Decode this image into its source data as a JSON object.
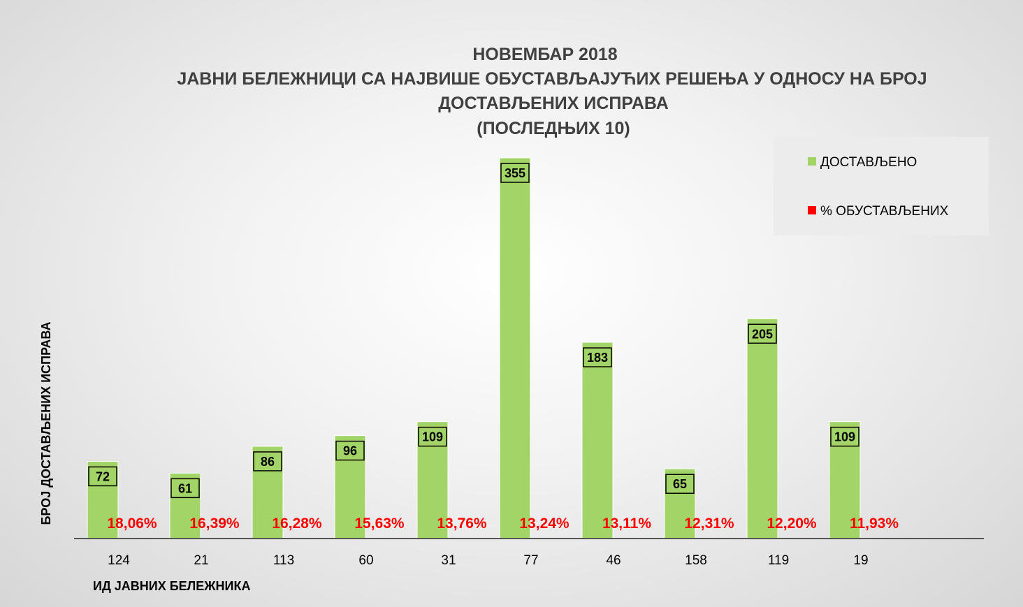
{
  "chart_data": {
    "type": "bar",
    "title_lines": [
      "НОВЕМБАР 2018",
      "ЈАВНИ БЕЛЕЖНИЦИ СА НАЈВИШЕ ОБУСТАВЉАЈУЋИХ РЕШЕЊА У ОДНОСУ НА БРОЈ",
      "ДОСТАВЉЕНИХ ИСПРАВА",
      "(ПОСЛЕДЊИХ 10)"
    ],
    "categories": [
      "124",
      "21",
      "113",
      "60",
      "31",
      "77",
      "46",
      "158",
      "119",
      "19"
    ],
    "series": [
      {
        "name": "ДОСТАВЉЕНО",
        "values": [
          72,
          61,
          86,
          96,
          109,
          355,
          183,
          65,
          205,
          109
        ],
        "color": "#a3d468"
      },
      {
        "name": "% ОБУСТАВЉЕНИХ",
        "labels": [
          "18,06%",
          "16,39%",
          "16,28%",
          "15,63%",
          "13,76%",
          "13,24%",
          "13,11%",
          "12,31%",
          "12,20%",
          "11,93%"
        ],
        "values": [
          18.06,
          16.39,
          16.28,
          15.63,
          13.76,
          13.24,
          13.11,
          12.31,
          12.2,
          11.93
        ],
        "color": "#ff0000"
      }
    ],
    "xlabel": "ИД ЈАВНИХ БЕЛЕЖНИКА",
    "ylabel": "БРОЈ ДОСТАВЉЕНИХ ИСПРАВА",
    "ylim": [
      0,
      355
    ],
    "grid": false,
    "legend_position": "top-right"
  }
}
